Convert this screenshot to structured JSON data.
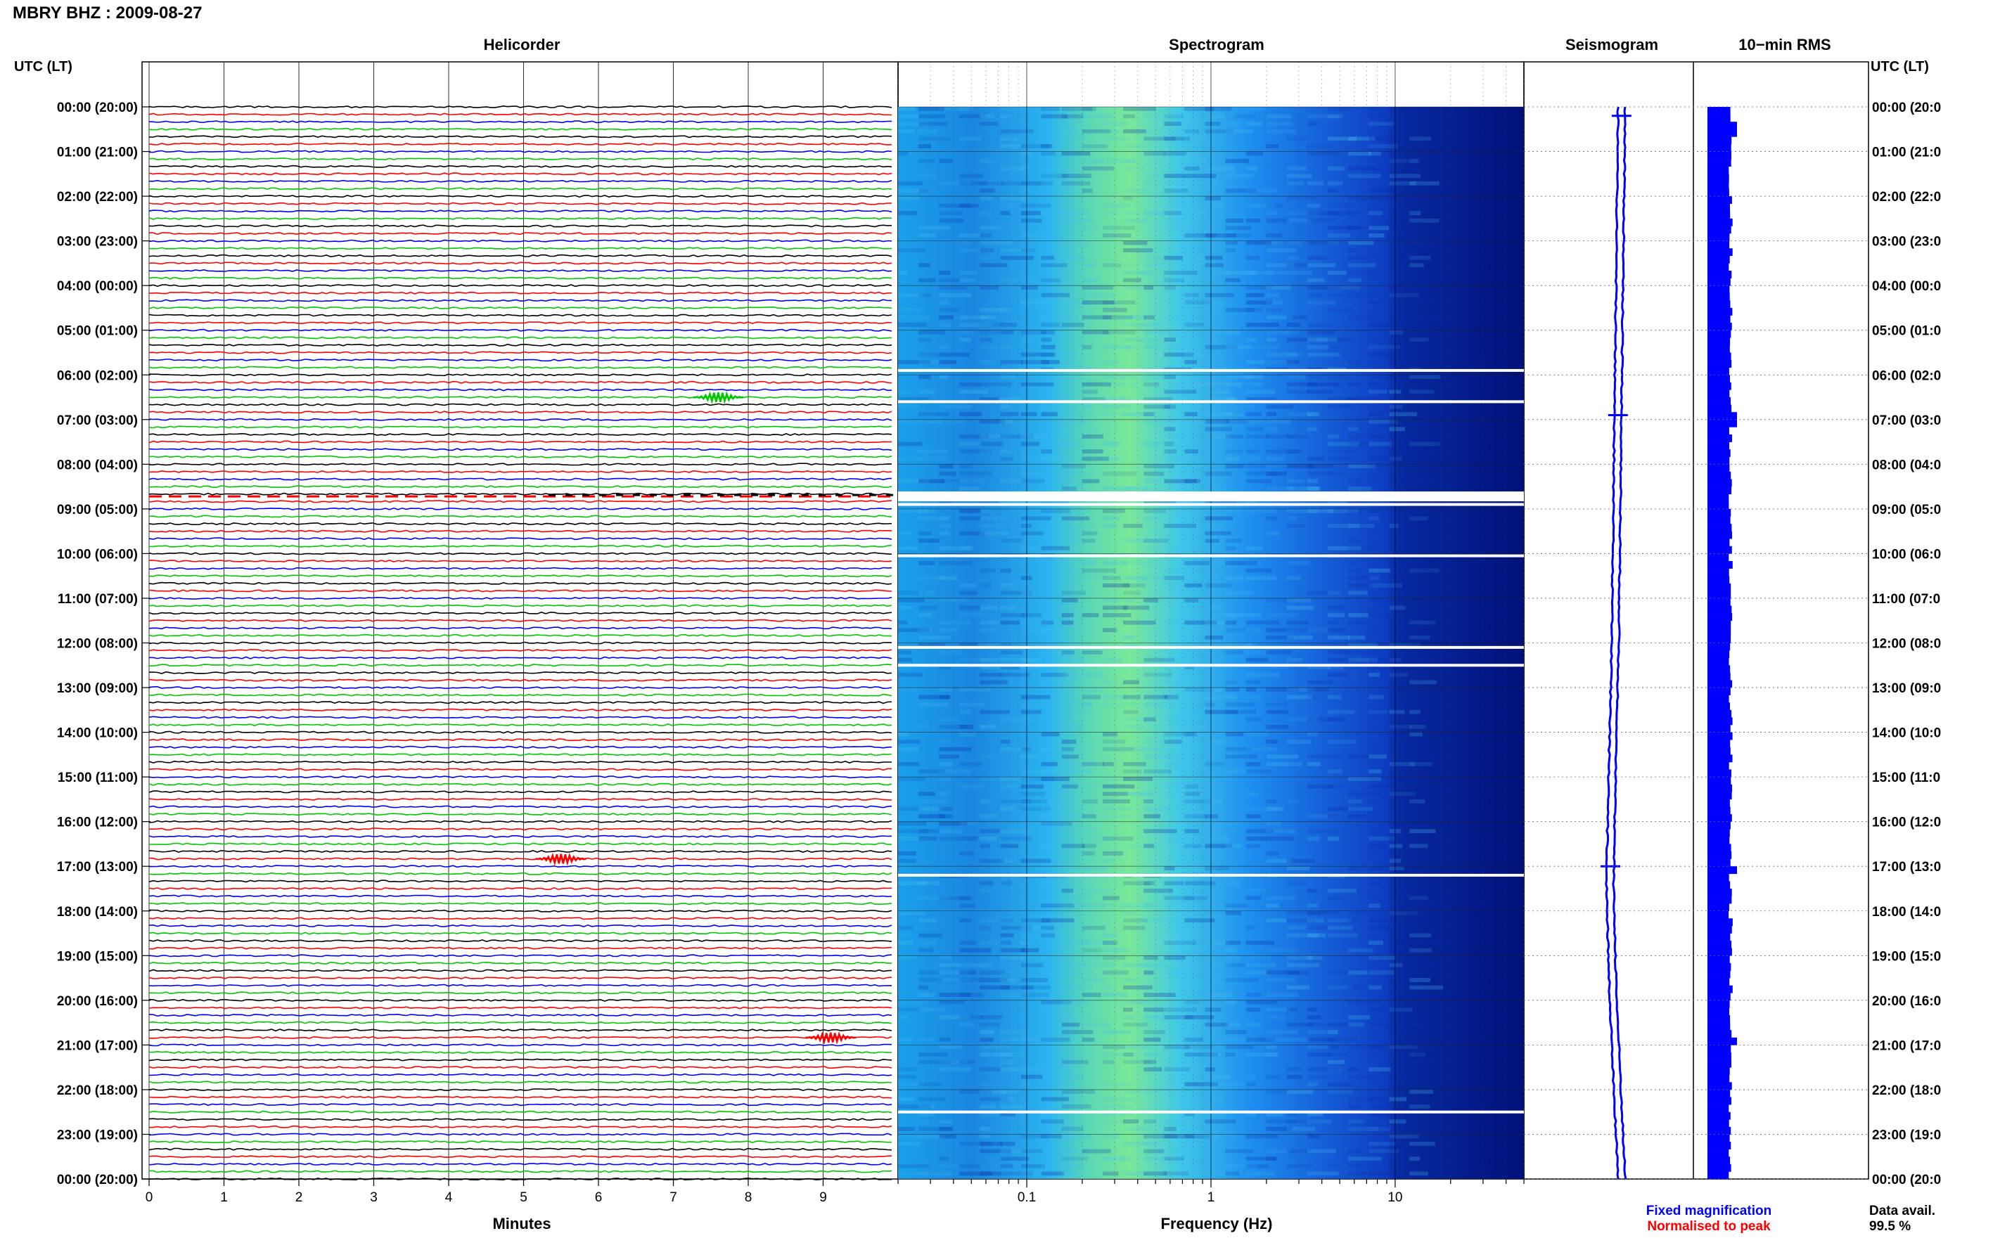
{
  "header": {
    "station_title": "MBRY BHZ : 2009-08-27"
  },
  "panels": {
    "helicorder_title": "Helicorder",
    "spectrogram_title": "Spectrogram",
    "seismogram_title": "Seismogram",
    "rms_title": "10−min RMS"
  },
  "axes": {
    "time_axis_label": "UTC (LT)",
    "time_ticks": [
      "00:00 (20:00)",
      "01:00 (21:00)",
      "02:00 (22:00)",
      "03:00 (23:00)",
      "04:00 (00:00)",
      "05:00 (01:00)",
      "06:00 (02:00)",
      "07:00 (03:00)",
      "08:00 (04:00)",
      "09:00 (05:00)",
      "10:00 (06:00)",
      "11:00 (07:00)",
      "12:00 (08:00)",
      "13:00 (09:00)",
      "14:00 (10:00)",
      "15:00 (11:00)",
      "16:00 (12:00)",
      "17:00 (13:00)",
      "18:00 (14:00)",
      "19:00 (15:00)",
      "20:00 (16:00)",
      "21:00 (17:00)",
      "22:00 (18:00)",
      "23:00 (19:00)",
      "00:00 (20:00)"
    ],
    "right_ticks": [
      "00:00 (20:0",
      "01:00 (21:0",
      "02:00 (22:0",
      "03:00 (23:0",
      "04:00 (00:0",
      "05:00 (01:0",
      "06:00 (02:0",
      "07:00 (03:0",
      "08:00 (04:0",
      "09:00 (05:0",
      "10:00 (06:0",
      "11:00 (07:0",
      "12:00 (08:0",
      "13:00 (09:0",
      "14:00 (10:0",
      "15:00 (11:0",
      "16:00 (12:0",
      "17:00 (13:0",
      "18:00 (14:0",
      "19:00 (15:0",
      "20:00 (16:0",
      "21:00 (17:0",
      "22:00 (18:0",
      "23:00 (19:0",
      "00:00 (20:0"
    ],
    "minutes_label": "Minutes",
    "minute_ticks": [
      "0",
      "1",
      "2",
      "3",
      "4",
      "5",
      "6",
      "7",
      "8",
      "9"
    ],
    "frequency_label": "Frequency (Hz)",
    "frequency_ticks": [
      "0.1",
      "1",
      "10"
    ]
  },
  "legend": {
    "fixed": "Fixed magnification",
    "normalised": "Normalised to peak",
    "data_avail_label": "Data avail.",
    "data_avail_value": "99.5 %"
  },
  "colors": {
    "trace_cycle": [
      "#000000",
      "#ff0000",
      "#0000ff",
      "#00c800"
    ],
    "fixed_legend": "#0000ff",
    "normalised_legend": "#ff0000",
    "seismogram": "#0000ff",
    "rms": "#0000ff",
    "spectrogram_low": "#00008b",
    "spectrogram_mid": "#1e90ff",
    "spectrogram_high": "#7cfc6a"
  },
  "chart_data": [
    {
      "type": "line",
      "name": "helicorder",
      "x_range_minutes": [
        0,
        10
      ],
      "lines_per_hour": 6,
      "hours": 24,
      "gaps": [
        {
          "hour": 8.7,
          "note_hidden": true
        }
      ],
      "events": [
        {
          "hour": 6.55,
          "minute": 7.6
        },
        {
          "hour": 16.9,
          "minute": 5.5
        },
        {
          "hour": 20.75,
          "minute": 9.1
        }
      ]
    },
    {
      "type": "heatmap",
      "name": "spectrogram",
      "freq_range_hz": [
        0.02,
        50
      ],
      "log_x": true,
      "hours": 24,
      "gap_hours": [
        5.9,
        6.6,
        8.9,
        10.05,
        12.1,
        12.5,
        17.2,
        22.5
      ]
    },
    {
      "type": "line",
      "name": "seismogram",
      "hours": 24,
      "drift": [
        [
          0,
          0
        ],
        [
          6,
          -1.5
        ],
        [
          12,
          -3
        ],
        [
          16,
          -5
        ],
        [
          17.5,
          -5.5
        ],
        [
          20,
          -4
        ],
        [
          22,
          -2
        ],
        [
          24,
          0
        ]
      ],
      "spikes": [
        {
          "hour": 0.2
        },
        {
          "hour": 6.9
        },
        {
          "hour": 17.0
        }
      ]
    },
    {
      "type": "bar",
      "name": "rms",
      "hours": 24,
      "bins_per_hour": 6,
      "peaks": [
        {
          "hour": 0.4
        },
        {
          "hour": 6.9
        },
        {
          "hour": 17.0
        },
        {
          "hour": 20.8
        }
      ]
    }
  ]
}
